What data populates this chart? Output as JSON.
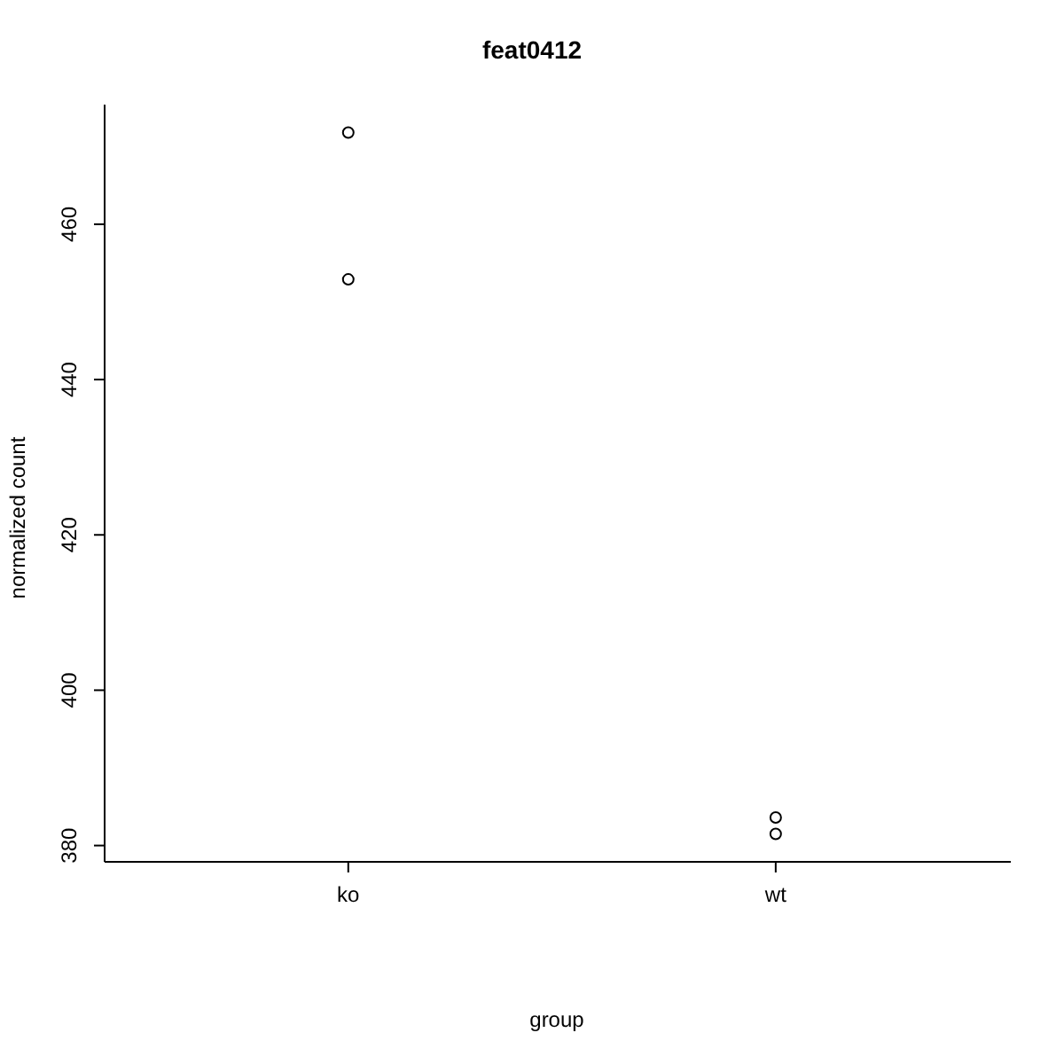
{
  "chart_data": {
    "type": "scatter",
    "title": "feat0412",
    "xlabel": "group",
    "ylabel": "normalized count",
    "categories": [
      "ko",
      "wt"
    ],
    "series": [
      {
        "color": "#000000",
        "x": [
          "ko",
          "ko",
          "wt",
          "wt"
        ],
        "values": [
          452.9,
          471.8,
          381.5,
          383.6
        ]
      }
    ],
    "ylim": [
      377.9,
      475.4
    ],
    "yticks": [
      380,
      400,
      420,
      440,
      460
    ],
    "marker": "circle",
    "grid": false,
    "legend": false
  }
}
